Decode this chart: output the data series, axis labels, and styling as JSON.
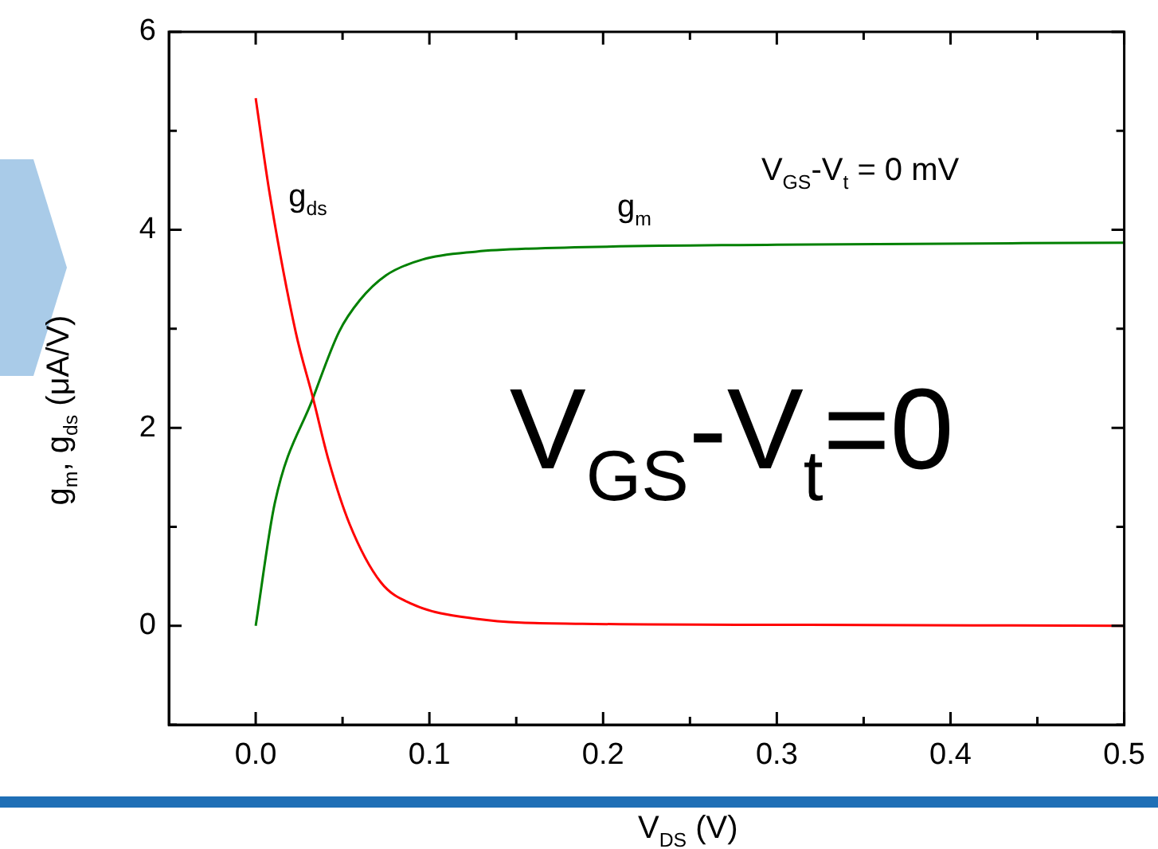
{
  "chart_data": {
    "type": "line",
    "xlabel": "V$_{DS}$ (V)",
    "ylabel": "g$_{m}$, g$_{ds}$ (μA/V)",
    "annotations": [
      "V$_{GS}$-V$_{t}$ = 0 mV",
      "V$_{GS}$-V$_{t}$=0"
    ],
    "xlim": [
      -0.05,
      0.5
    ],
    "ylim": [
      -1,
      6
    ],
    "xticks": [
      {
        "value": 0,
        "label": "0.0"
      },
      {
        "value": 0.05,
        "label": null
      },
      0.1,
      {
        "value": 0.15,
        "label": null
      },
      0.2,
      {
        "value": 0.25,
        "label": null
      },
      0.3,
      {
        "value": 0.35,
        "label": null
      },
      0.4,
      {
        "value": 0.45,
        "label": null
      },
      0.5
    ],
    "yticks": [
      {
        "value": -1,
        "label": null
      },
      0,
      {
        "value": 1,
        "label": null
      },
      2,
      {
        "value": 3,
        "label": null
      },
      4,
      {
        "value": 5,
        "label": null
      },
      6
    ],
    "grid": false,
    "legend": false,
    "marker": "none",
    "line_style": "solid",
    "series": [
      {
        "name": "g$_{ds}$",
        "color": "#ff0000",
        "x": [
          0,
          0.008,
          0.023,
          0.033,
          0.042,
          0.054,
          0.072,
          0.09,
          0.127,
          0.188,
          0.3,
          0.5
        ],
        "values": [
          5.33,
          4.37,
          2.97,
          2.3,
          1.67,
          1.03,
          0.44,
          0.22,
          0.07,
          0.02,
          0.01,
          0
        ]
      },
      {
        "name": "g$_{m}$",
        "color": "#008000",
        "x": [
          0,
          0.011,
          0.033,
          0.048,
          0.06,
          0.075,
          0.096,
          0.127,
          0.157,
          0.3,
          0.5
        ],
        "values": [
          0,
          1.24,
          2.3,
          2.97,
          3.29,
          3.54,
          3.7,
          3.78,
          3.81,
          3.85,
          3.87
        ]
      }
    ]
  }
}
